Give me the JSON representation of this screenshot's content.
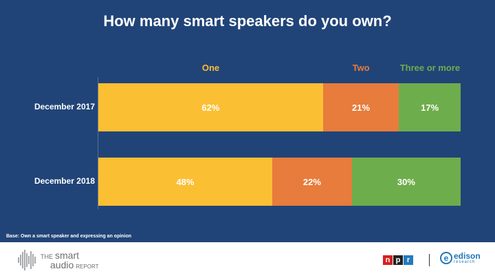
{
  "title": "How many smart speakers do you own?",
  "base_note": "Base: Own a smart speaker and expressing an opinion",
  "chart_data": {
    "type": "bar",
    "orientation": "horizontal",
    "stacked": true,
    "percent_stacked": true,
    "categories": [
      "December 2017",
      "December 2018"
    ],
    "series": [
      {
        "name": "One",
        "values": [
          62,
          48
        ],
        "color": "#fbbf33"
      },
      {
        "name": "Two",
        "values": [
          21,
          22
        ],
        "color": "#e77c3c"
      },
      {
        "name": "Three or more",
        "values": [
          17,
          30
        ],
        "color": "#6ead4c"
      }
    ],
    "value_format": "percent",
    "legend_position": "top"
  },
  "footer": {
    "smart_audio": {
      "the": "THE",
      "smart": "smart",
      "audio": "audio",
      "report": "REPORT"
    },
    "npr": [
      "n",
      "p",
      "r"
    ],
    "edison": {
      "name": "edison",
      "sub": "research"
    }
  }
}
